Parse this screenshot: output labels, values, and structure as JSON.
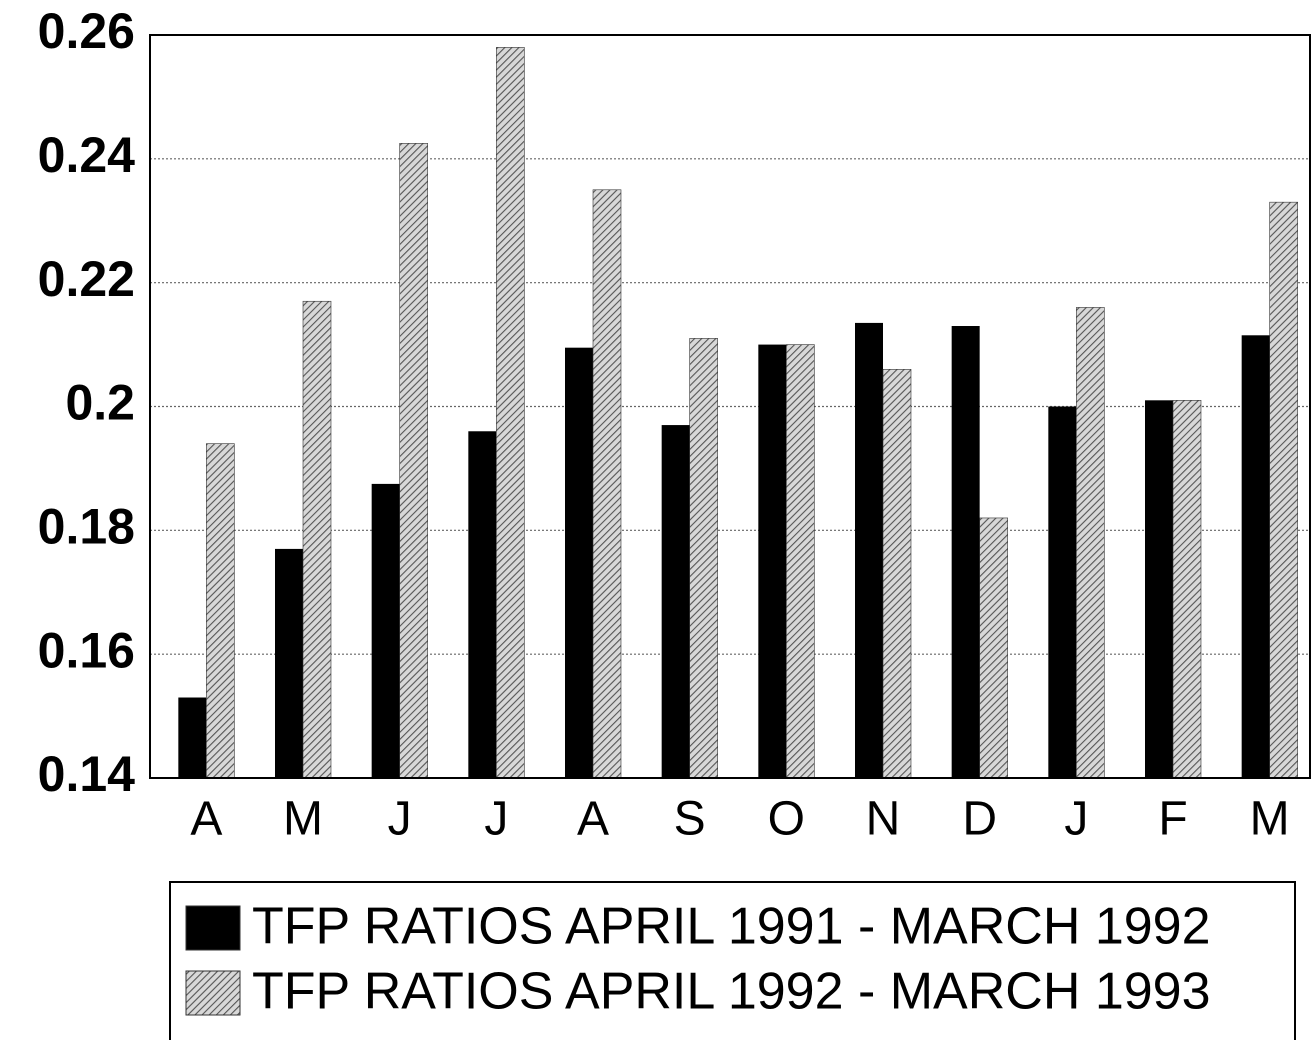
{
  "chart_data": {
    "type": "bar",
    "categories": [
      "A",
      "M",
      "J",
      "J",
      "A",
      "S",
      "O",
      "N",
      "D",
      "J",
      "F",
      "M"
    ],
    "series": [
      {
        "name": "TFP RATIOS APRIL 1991 - MARCH 1992",
        "color": "#000000",
        "values": [
          0.153,
          0.177,
          0.1875,
          0.196,
          0.2095,
          0.197,
          0.21,
          0.2135,
          0.213,
          0.2,
          0.201,
          0.2115
        ]
      },
      {
        "name": "TFP RATIOS APRIL 1992 - MARCH 1993",
        "color": "#555555",
        "values": [
          0.194,
          0.217,
          0.2425,
          0.258,
          0.235,
          0.211,
          0.21,
          0.206,
          0.182,
          0.216,
          0.201,
          0.233
        ]
      }
    ],
    "ylim": [
      0.14,
      0.26
    ],
    "yticks": [
      0.14,
      0.16,
      0.18,
      0.2,
      0.22,
      0.24,
      0.26
    ],
    "grid": true
  }
}
